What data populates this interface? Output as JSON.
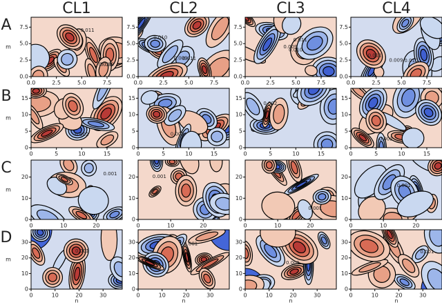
{
  "chart_data": {
    "type": "contour",
    "column_titles": [
      "CL1",
      "CL2",
      "CL3",
      "CL4"
    ],
    "x_label": "n",
    "y_label": "m",
    "rows": [
      {
        "label": "A",
        "xlim": [
          0,
          9
        ],
        "ylim": [
          0,
          9
        ],
        "xticks": [
          {
            "value": 0,
            "label": "0.0"
          },
          {
            "value": 2.5,
            "label": "2.5"
          },
          {
            "value": 5,
            "label": "5.0"
          },
          {
            "value": 7.5,
            "label": "7.5"
          }
        ],
        "yticks": [
          {
            "value": 0,
            "label": "0.0"
          },
          {
            "value": 2.5,
            "label": "2.5"
          },
          {
            "value": 5,
            "label": "5.0"
          },
          {
            "value": 7.5,
            "label": "7.5"
          }
        ],
        "contour_labels": [
          "0.011",
          "0.009",
          "0.010"
        ]
      },
      {
        "label": "B",
        "xlim": [
          0,
          18
        ],
        "ylim": [
          0,
          18
        ],
        "xticks": [
          0,
          5,
          10,
          15
        ],
        "yticks": [
          0,
          5,
          10,
          15
        ],
        "contour_labels": [
          "0.002"
        ]
      },
      {
        "label": "C",
        "xlim": [
          0,
          28
        ],
        "ylim": [
          0,
          28
        ],
        "xticks": [
          0,
          10,
          20
        ],
        "yticks": [
          0,
          10,
          20
        ],
        "contour_labels": [
          "0.001"
        ]
      },
      {
        "label": "D",
        "xlim": [
          0,
          38
        ],
        "ylim": [
          0,
          38
        ],
        "xticks": [
          0,
          10,
          20,
          30
        ],
        "yticks": [
          0,
          10,
          20,
          30
        ],
        "contour_labels": [
          "0.001"
        ]
      }
    ]
  }
}
